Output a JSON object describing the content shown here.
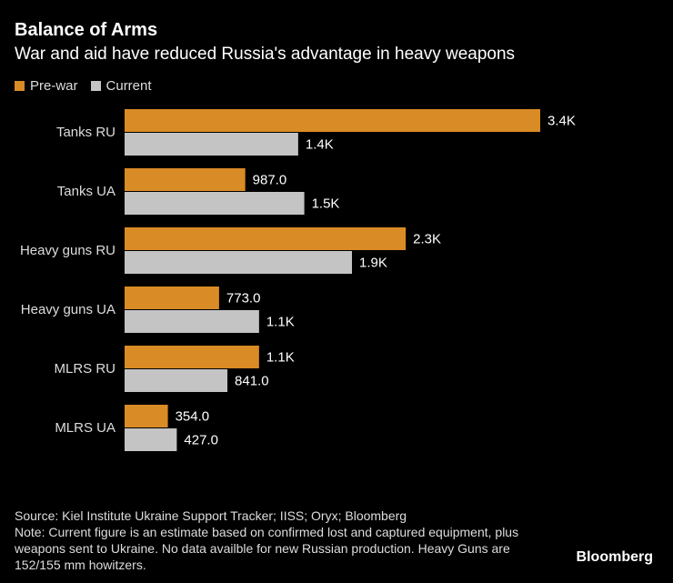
{
  "chart_data": {
    "type": "bar",
    "orientation": "horizontal",
    "title": "Balance of Arms",
    "subtitle": "War and aid have reduced Russia's advantage in heavy weapons",
    "categories": [
      "Tanks RU",
      "Tanks UA",
      "Heavy guns RU",
      "Heavy guns UA",
      "MLRS RU",
      "MLRS UA"
    ],
    "series": [
      {
        "name": "Pre-war",
        "color": "#d98b25",
        "values": [
          3400,
          987,
          2300,
          773,
          1100,
          354
        ],
        "labels": [
          "3.4K",
          "987.0",
          "2.3K",
          "773.0",
          "1.1K",
          "354.0"
        ]
      },
      {
        "name": "Current",
        "color": "#c4c4c4",
        "values": [
          1420,
          1470,
          1860,
          1100,
          841,
          427
        ],
        "labels": [
          "1.4K",
          "1.5K",
          "1.9K",
          "1.1K",
          "841.0",
          "427.0"
        ]
      }
    ],
    "xlim": [
      0,
      3400
    ],
    "grid": false,
    "legend": "top-left"
  },
  "footer": {
    "source": "Source: Kiel Institute Ukraine Support Tracker; IISS; Oryx; Bloomberg",
    "note": "Note: Current figure is an estimate based on confirmed lost and captured equipment, plus weapons sent to Ukraine. No data availble for new Russian production. Heavy Guns are 152/155 mm howitzers.",
    "brand": "Bloomberg"
  }
}
